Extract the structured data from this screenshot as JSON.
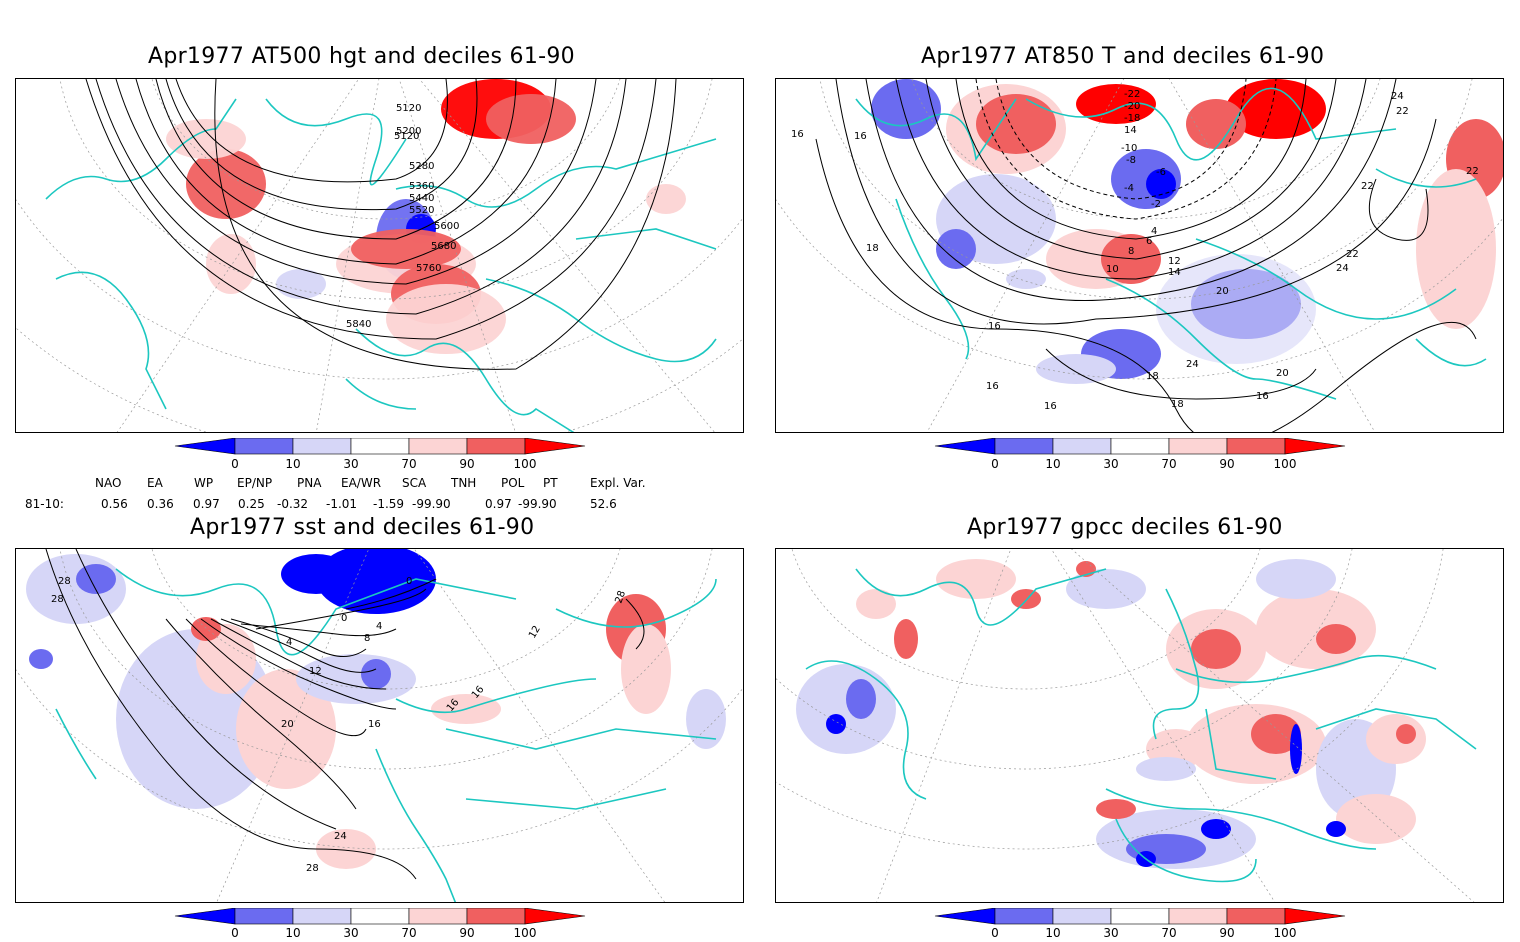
{
  "panels": [
    {
      "title": "Apr1977 AT500 hgt and deciles 61-90",
      "contour_labels": [
        "5120",
        "5200",
        "5280",
        "5360",
        "5440",
        "5520",
        "5600",
        "5680",
        "5760",
        "5840"
      ]
    },
    {
      "title": "Apr1977 AT850 T and deciles 61-90",
      "contour_labels": [
        "-22",
        "-20",
        "-18",
        "14",
        "-10",
        "-8",
        "-6",
        "-4",
        "-2",
        "4",
        "6",
        "8",
        "10",
        "12",
        "14",
        "16",
        "16",
        "18",
        "20",
        "22",
        "22",
        "24",
        "24",
        "16",
        "16",
        "18",
        "20",
        "22",
        "24",
        "16",
        "18",
        "16",
        "22"
      ]
    },
    {
      "title": "Apr1977 sst and deciles 61-90",
      "contour_labels": [
        "28",
        "28",
        "28",
        "0",
        "4",
        "8",
        "12",
        "16",
        "16",
        "16",
        "12",
        "20",
        "24",
        "28",
        "0",
        "4",
        "8"
      ]
    },
    {
      "title": "Apr1977 gpcc deciles 61-90",
      "contour_labels": []
    }
  ],
  "colorbar": {
    "tick_labels": [
      "0",
      "10",
      "30",
      "70",
      "90",
      "100"
    ],
    "colors": [
      "#0000ff",
      "#6b6bf0",
      "#d6d6f7",
      "#ffffff",
      "#fcd4d4",
      "#f06060",
      "#ff0000"
    ]
  },
  "indices": {
    "headers": [
      "NAO",
      "EA",
      "WP",
      "EP/NP",
      "PNA",
      "EA/WR",
      "SCA",
      "TNH",
      "POL",
      "PT",
      "Expl. Var."
    ],
    "row_label": "81-10:",
    "values": [
      "0.56",
      "0.36",
      "0.97",
      "0.25",
      "-0.32",
      "-1.01",
      "-1.59",
      "-99.90",
      "0.97",
      "-99.90",
      "52.6"
    ]
  }
}
